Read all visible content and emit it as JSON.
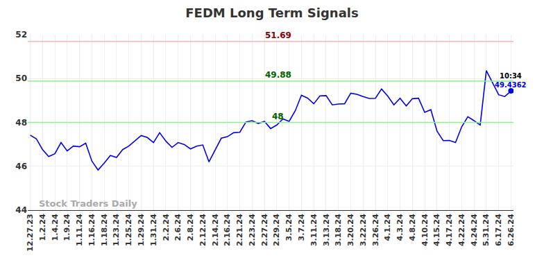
{
  "chart_data": {
    "type": "line",
    "title": "FEDM Long Term Signals",
    "categories": [
      "12.27.23",
      null,
      "1.2.24",
      null,
      "1.4.24",
      null,
      "1.9.24",
      null,
      "1.11.24",
      null,
      "1.16.24",
      null,
      "1.18.24",
      null,
      "1.23.24",
      null,
      "1.25.24",
      null,
      "1.29.24",
      null,
      "1.31.24",
      null,
      "2.2.24",
      null,
      "2.6.24",
      null,
      "2.8.24",
      null,
      "2.12.24",
      null,
      "2.14.24",
      null,
      "2.16.24",
      null,
      "2.21.24",
      null,
      "2.23.24",
      null,
      "2.27.24",
      null,
      "2.29.24",
      null,
      "3.5.24",
      null,
      "3.7.24",
      null,
      "3.11.24",
      null,
      "3.13.24",
      null,
      "3.18.24",
      null,
      "3.20.24",
      null,
      "3.22.24",
      null,
      "3.26.24",
      null,
      "4.1.24",
      null,
      "4.3.24",
      null,
      "4.8.24",
      null,
      "4.10.24",
      null,
      "4.15.24",
      null,
      "4.17.24",
      null,
      "4.22.24",
      null,
      "4.24.24",
      null,
      "5.31.24",
      null,
      "6.17.24",
      null,
      "6.26.24"
    ],
    "values": [
      47.42,
      47.25,
      46.76,
      46.44,
      46.57,
      47.08,
      46.7,
      46.92,
      46.89,
      47.05,
      46.24,
      45.83,
      46.14,
      46.49,
      46.4,
      46.76,
      46.92,
      47.15,
      47.4,
      47.31,
      47.08,
      47.53,
      47.15,
      46.86,
      47.08,
      46.99,
      46.79,
      46.92,
      46.97,
      46.2,
      46.76,
      47.28,
      47.35,
      47.53,
      47.55,
      48.02,
      48.08,
      47.95,
      48.05,
      47.72,
      47.88,
      48.16,
      48.05,
      48.53,
      49.24,
      49.11,
      48.85,
      49.21,
      49.22,
      48.8,
      48.84,
      48.85,
      49.33,
      49.28,
      49.18,
      49.09,
      49.1,
      49.52,
      49.2,
      48.8,
      49.1,
      48.75,
      49.08,
      49.1,
      48.46,
      48.58,
      47.6,
      47.17,
      47.18,
      47.08,
      47.8,
      48.26,
      48.08,
      47.88,
      50.36,
      49.82,
      49.26,
      49.18,
      49.4362
    ],
    "color": "#0000ee",
    "ylim": [
      44,
      52
    ],
    "yticks": [
      44,
      46,
      48,
      50,
      52
    ],
    "grid": true,
    "reference_lines": [
      {
        "value": 51.69,
        "label": "51.69",
        "color": "#ffb3b3",
        "label_color": "#8b0000"
      },
      {
        "value": 49.88,
        "label": "49.88",
        "color": "#90ee90",
        "label_color": "#006400"
      },
      {
        "value": 48,
        "label": "48",
        "color": "#90ee90",
        "label_color": "#006400"
      }
    ],
    "last_point": {
      "time": "10:34",
      "value_label": "49.4362",
      "color": "#0000ee"
    },
    "watermark": "Stock Traders Daily"
  }
}
